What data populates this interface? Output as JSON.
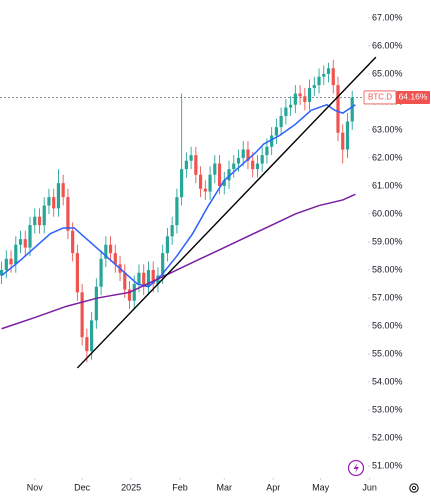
{
  "chart_data": {
    "type": "candlestick",
    "symbol": "BTC.D",
    "last_price": 64.16,
    "last_price_label": "64.16%",
    "x": [
      -21,
      -18,
      -15,
      -12,
      -9,
      -6,
      -3,
      0,
      3,
      6,
      9,
      12,
      15,
      18,
      21,
      24,
      27,
      30,
      33,
      36,
      39,
      42,
      45,
      48,
      51,
      54,
      57,
      60,
      63,
      66,
      69,
      72,
      75,
      78,
      81,
      84,
      87,
      90,
      93,
      96,
      99,
      102,
      105,
      108,
      111,
      114,
      117,
      120,
      123,
      126,
      129,
      132,
      135,
      138,
      141,
      144,
      147,
      150,
      153,
      156,
      159,
      162,
      165,
      168,
      171,
      174,
      177,
      180,
      183,
      186,
      189,
      192,
      195,
      198,
      201
    ],
    "open": [
      57.8,
      58.0,
      58.4,
      58.2,
      58.9,
      59.1,
      58.8,
      59.6,
      59.9,
      59.6,
      60.3,
      60.6,
      60.2,
      61.1,
      60.6,
      59.4,
      58.6,
      57.2,
      55.6,
      55.1,
      56.2,
      57.4,
      58.4,
      58.9,
      58.6,
      58.2,
      57.9,
      57.3,
      56.9,
      57.5,
      57.9,
      57.4,
      58.0,
      57.5,
      57.8,
      58.6,
      59.2,
      59.6,
      60.6,
      61.6,
      61.9,
      62.1,
      61.4,
      60.9,
      60.8,
      61.4,
      61.8,
      61.0,
      61.2,
      61.6,
      61.8,
      62.0,
      62.3,
      61.9,
      61.6,
      61.8,
      62.1,
      62.4,
      62.8,
      63.1,
      63.5,
      63.8,
      63.9,
      64.3,
      64.2,
      64.0,
      64.5,
      64.6,
      64.9,
      65.0,
      65.2,
      64.6,
      62.9,
      62.3,
      63.3
    ],
    "high": [
      58.3,
      58.7,
      58.7,
      59.2,
      59.4,
      59.4,
      59.9,
      60.2,
      60.2,
      60.6,
      60.9,
      60.9,
      61.6,
      61.4,
      60.9,
      59.7,
      58.9,
      57.5,
      55.9,
      56.5,
      57.7,
      58.7,
      59.2,
      59.2,
      58.9,
      58.5,
      58.2,
      57.6,
      57.8,
      58.2,
      58.2,
      58.3,
      58.3,
      58.1,
      58.9,
      59.5,
      59.9,
      60.9,
      64.3,
      62.2,
      62.4,
      62.4,
      61.7,
      61.2,
      61.7,
      62.1,
      62.1,
      61.5,
      61.9,
      62.1,
      62.3,
      62.6,
      62.6,
      62.2,
      62.1,
      62.4,
      62.7,
      63.1,
      63.4,
      63.8,
      64.1,
      64.2,
      64.6,
      64.6,
      64.5,
      64.8,
      64.9,
      65.2,
      65.3,
      65.4,
      65.5,
      64.9,
      63.2,
      63.6,
      64.4
    ],
    "low": [
      57.5,
      57.7,
      57.9,
      57.9,
      58.6,
      58.5,
      58.5,
      59.3,
      59.3,
      59.3,
      60.0,
      59.9,
      59.9,
      60.3,
      59.1,
      58.3,
      56.9,
      55.3,
      54.7,
      54.8,
      55.9,
      57.1,
      58.1,
      58.3,
      57.9,
      57.6,
      57.0,
      56.6,
      56.6,
      57.2,
      57.1,
      57.1,
      57.2,
      57.2,
      57.5,
      58.3,
      58.9,
      59.3,
      60.3,
      61.3,
      61.6,
      61.1,
      60.6,
      60.5,
      60.5,
      61.1,
      60.7,
      60.7,
      60.9,
      61.3,
      61.5,
      61.7,
      61.6,
      61.3,
      61.3,
      61.5,
      61.8,
      62.1,
      62.5,
      62.8,
      63.2,
      63.5,
      63.6,
      63.9,
      63.7,
      63.7,
      64.2,
      64.3,
      64.6,
      64.7,
      64.3,
      62.6,
      61.8,
      62.0,
      63.0
    ],
    "close": [
      58.0,
      58.4,
      58.2,
      58.9,
      59.1,
      58.8,
      59.6,
      59.9,
      59.6,
      60.3,
      60.6,
      60.2,
      61.1,
      60.6,
      59.4,
      58.6,
      57.2,
      55.6,
      55.1,
      56.2,
      57.4,
      58.4,
      58.9,
      58.6,
      58.2,
      57.9,
      57.3,
      56.9,
      57.5,
      57.9,
      57.4,
      58.0,
      57.5,
      57.8,
      58.6,
      59.2,
      59.6,
      60.6,
      61.6,
      61.9,
      62.1,
      61.4,
      60.9,
      60.8,
      61.4,
      61.8,
      61.0,
      61.2,
      61.6,
      61.8,
      62.0,
      62.3,
      61.9,
      61.6,
      61.8,
      62.1,
      62.4,
      62.8,
      63.1,
      63.5,
      63.8,
      63.9,
      64.3,
      64.2,
      64.0,
      64.5,
      64.6,
      64.9,
      65.0,
      65.2,
      64.6,
      62.9,
      62.3,
      63.3,
      64.16
    ],
    "up_color": "#26a69a",
    "down_color": "#ef5350",
    "lines": [
      {
        "color": "#2962ff",
        "x": [
          -21,
          -10,
          0,
          10,
          18,
          25,
          35,
          45,
          55,
          65,
          72,
          80,
          90,
          100,
          110,
          120,
          130,
          140,
          145,
          155,
          165,
          175,
          185,
          190,
          195,
          203
        ],
        "values": [
          57.8,
          58.3,
          58.8,
          59.3,
          59.5,
          59.5,
          59.0,
          58.5,
          58.0,
          57.5,
          57.4,
          57.8,
          58.5,
          59.3,
          60.3,
          61.2,
          61.7,
          62.2,
          62.5,
          62.8,
          63.2,
          63.7,
          63.9,
          63.7,
          63.6,
          63.9
        ]
      },
      {
        "color": "#7b1fa2",
        "x": [
          -21,
          0,
          20,
          40,
          60,
          75,
          90,
          105,
          120,
          135,
          150,
          165,
          180,
          195,
          203
        ],
        "values": [
          55.9,
          56.3,
          56.7,
          57.0,
          57.2,
          57.6,
          58.0,
          58.4,
          58.8,
          59.2,
          59.6,
          60.0,
          60.3,
          60.5,
          60.7
        ]
      }
    ],
    "trendline": {
      "color": "#000000",
      "x": [
        27,
        216
      ],
      "y": [
        54.5,
        65.6
      ]
    },
    "xlim": [
      -22,
      211
    ],
    "ylim": [
      50.57,
      67.64
    ],
    "xticks": [
      {
        "value": 0,
        "label": "Nov"
      },
      {
        "value": 30,
        "label": "Dec"
      },
      {
        "value": 61,
        "label": "2025"
      },
      {
        "value": 92,
        "label": "Feb"
      },
      {
        "value": 120,
        "label": "Mar"
      },
      {
        "value": 151,
        "label": "Apr"
      },
      {
        "value": 181,
        "label": "May"
      },
      {
        "value": 212,
        "label": "Jun"
      }
    ],
    "yticks": [
      {
        "value": 51,
        "label": "51.00%"
      },
      {
        "value": 52,
        "label": "52.00%"
      },
      {
        "value": 53,
        "label": "53.00%"
      },
      {
        "value": 54,
        "label": "54.00%"
      },
      {
        "value": 55,
        "label": "55.00%"
      },
      {
        "value": 56,
        "label": "56.00%"
      },
      {
        "value": 57,
        "label": "57.00%"
      },
      {
        "value": 58,
        "label": "58.00%"
      },
      {
        "value": 59,
        "label": "59.00%"
      },
      {
        "value": 60,
        "label": "60.00%"
      },
      {
        "value": 61,
        "label": "61.00%"
      },
      {
        "value": 62,
        "label": "62.00%"
      },
      {
        "value": 63,
        "label": "63.00%"
      },
      {
        "value": 64,
        "label": "64.00%"
      },
      {
        "value": 65,
        "label": "65.00%"
      },
      {
        "value": 66,
        "label": "66.00%"
      },
      {
        "value": 67,
        "label": "67.00%"
      }
    ],
    "grid": false
  }
}
